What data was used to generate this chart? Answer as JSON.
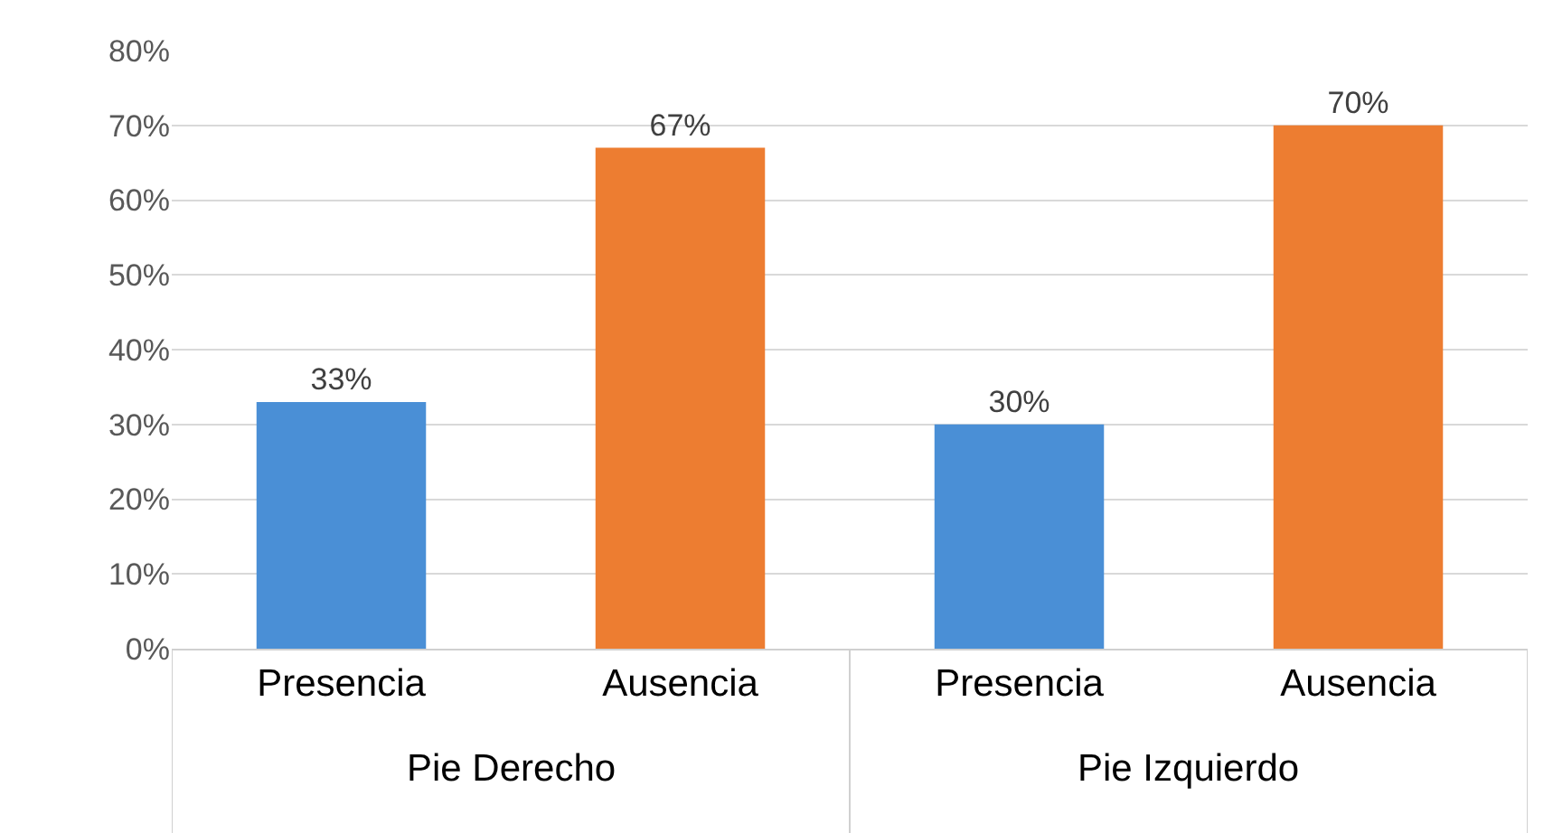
{
  "chart_data": {
    "type": "bar",
    "categories": [
      "Presencia",
      "Ausencia",
      "Presencia",
      "Ausencia"
    ],
    "values": [
      33,
      67,
      30,
      70
    ],
    "colors": [
      "#4a8fd6",
      "#ed7d31",
      "#4a8fd6",
      "#ed7d31"
    ],
    "value_labels": [
      "33%",
      "67%",
      "30%",
      "70%"
    ],
    "ylim": [
      0,
      80
    ],
    "yticks": [
      {
        "value": 0,
        "label": "0%"
      },
      {
        "value": 10,
        "label": "10%"
      },
      {
        "value": 20,
        "label": "20%"
      },
      {
        "value": 30,
        "label": "30%"
      },
      {
        "value": 40,
        "label": "40%"
      },
      {
        "value": 50,
        "label": "50%"
      },
      {
        "value": 60,
        "label": "60%"
      },
      {
        "value": 70,
        "label": "70%"
      },
      {
        "value": 80,
        "label": "80%"
      }
    ],
    "grid": "y",
    "annotations": [
      "Pie Derecho",
      "Pie Izquierdo"
    ]
  }
}
